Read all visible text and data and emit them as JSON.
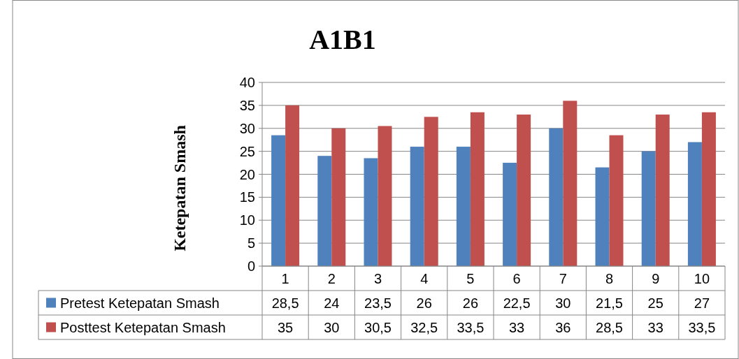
{
  "chart_data": {
    "type": "bar",
    "title": "A1B1",
    "ylabel": "Ketepatan Smash",
    "categories": [
      "1",
      "2",
      "3",
      "4",
      "5",
      "6",
      "7",
      "8",
      "9",
      "10"
    ],
    "series": [
      {
        "name": "Pretest Ketepatan Smash",
        "color": "#4f81bd",
        "values": [
          28.5,
          24,
          23.5,
          26,
          26,
          22.5,
          30,
          21.5,
          25,
          27
        ],
        "value_labels": [
          "28,5",
          "24",
          "23,5",
          "26",
          "26",
          "22,5",
          "30",
          "21,5",
          "25",
          "27"
        ]
      },
      {
        "name": "Posttest Ketepatan Smash",
        "color": "#c0504d",
        "values": [
          35,
          30,
          30.5,
          32.5,
          33.5,
          33,
          36,
          28.5,
          33,
          33.5
        ],
        "value_labels": [
          "35",
          "30",
          "30,5",
          "32,5",
          "33,5",
          "33",
          "36",
          "28,5",
          "33",
          "33,5"
        ]
      }
    ],
    "ylim": [
      0,
      40
    ],
    "yticks": [
      0,
      5,
      10,
      15,
      20,
      25,
      30,
      35,
      40
    ],
    "grid": "y",
    "legend": "bottom"
  }
}
